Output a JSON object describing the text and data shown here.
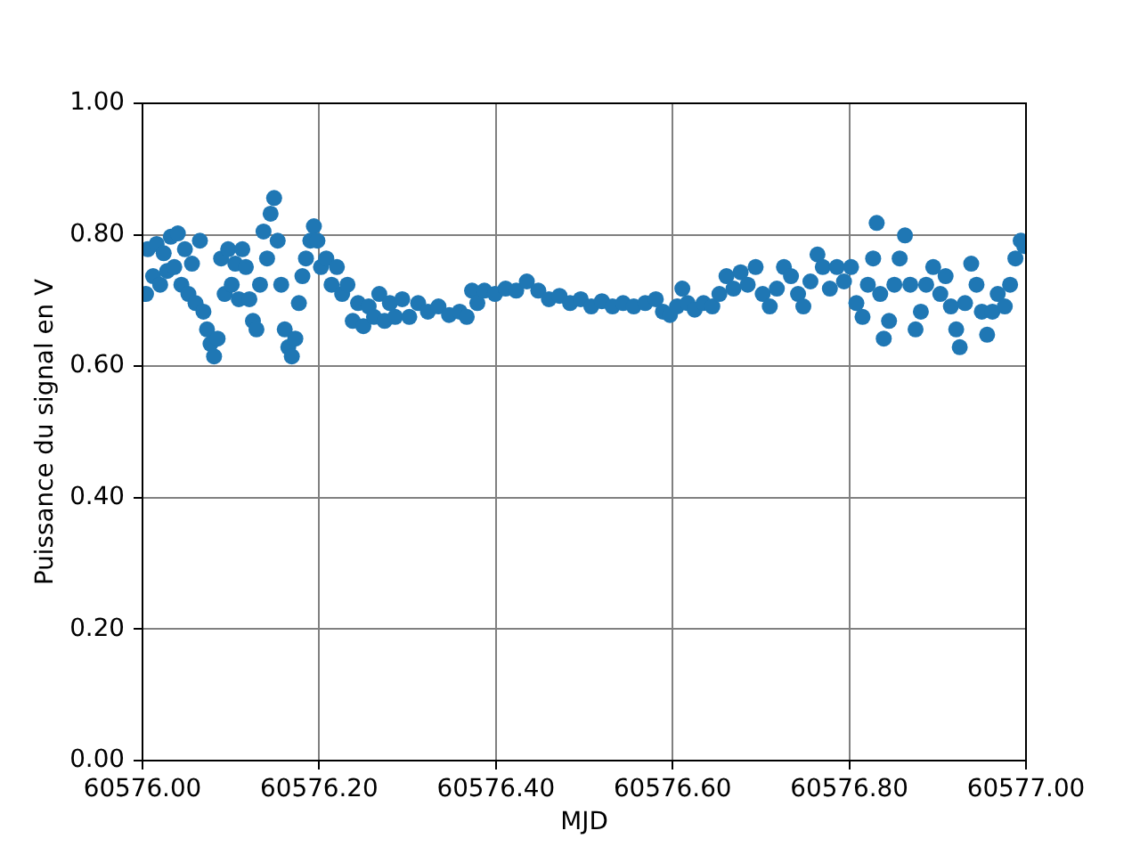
{
  "chart_data": {
    "type": "scatter",
    "xlabel": "MJD",
    "ylabel": "Puissance du signal en V",
    "color": "#1f77b4",
    "marker": "circle",
    "grid": true,
    "xlim": [
      60576,
      60577
    ],
    "ylim": [
      0,
      1
    ],
    "xticks": [
      {
        "value": 60576,
        "label": "60576.00"
      },
      {
        "value": 60576.2,
        "label": "60576.20"
      },
      {
        "value": 60576.4,
        "label": "60576.40"
      },
      {
        "value": 60576.6,
        "label": "60576.60"
      },
      {
        "value": 60576.8,
        "label": "60576.80"
      },
      {
        "value": 60577,
        "label": "60577.00"
      }
    ],
    "yticks": [
      {
        "value": 0,
        "label": "0.00"
      },
      {
        "value": 0.2,
        "label": "0.20"
      },
      {
        "value": 0.4,
        "label": "0.40"
      },
      {
        "value": 0.6,
        "label": "0.60"
      },
      {
        "value": 0.8,
        "label": "0.80"
      },
      {
        "value": 1,
        "label": "1.00"
      }
    ],
    "x": [
      60576.004,
      60576.006,
      60576.012,
      60576.016,
      60576.02,
      60576.024,
      60576.028,
      60576.032,
      60576.036,
      60576.04,
      60576.044,
      60576.048,
      60576.052,
      60576.056,
      60576.06,
      60576.065,
      60576.069,
      60576.073,
      60576.077,
      60576.081,
      60576.085,
      60576.089,
      60576.093,
      60576.097,
      60576.101,
      60576.105,
      60576.109,
      60576.113,
      60576.117,
      60576.121,
      60576.125,
      60576.129,
      60576.133,
      60576.137,
      60576.141,
      60576.145,
      60576.149,
      60576.153,
      60576.157,
      60576.161,
      60576.165,
      60576.169,
      60576.173,
      60576.177,
      60576.181,
      60576.185,
      60576.19,
      60576.194,
      60576.198,
      60576.202,
      60576.208,
      60576.214,
      60576.22,
      60576.226,
      60576.232,
      60576.238,
      60576.244,
      60576.25,
      60576.256,
      60576.262,
      60576.268,
      60576.274,
      60576.28,
      60576.286,
      60576.294,
      60576.302,
      60576.312,
      60576.323,
      60576.335,
      60576.347,
      60576.359,
      60576.367,
      60576.373,
      60576.379,
      60576.387,
      60576.399,
      60576.411,
      60576.423,
      60576.435,
      60576.448,
      60576.46,
      60576.472,
      60576.484,
      60576.496,
      60576.508,
      60576.52,
      60576.532,
      60576.544,
      60576.556,
      60576.569,
      60576.581,
      60576.589,
      60576.597,
      60576.605,
      60576.611,
      60576.617,
      60576.625,
      60576.635,
      60576.645,
      60576.653,
      60576.661,
      60576.669,
      60576.677,
      60576.685,
      60576.694,
      60576.702,
      60576.71,
      60576.718,
      60576.726,
      60576.734,
      60576.742,
      60576.748,
      60576.756,
      60576.764,
      60576.77,
      60576.778,
      60576.786,
      60576.794,
      60576.802,
      60576.808,
      60576.815,
      60576.821,
      60576.827,
      60576.831,
      60576.835,
      60576.839,
      60576.845,
      60576.851,
      60576.857,
      60576.863,
      60576.869,
      60576.875,
      60576.881,
      60576.887,
      60576.895,
      60576.903,
      60576.909,
      60576.915,
      60576.921,
      60576.925,
      60576.931,
      60576.938,
      60576.944,
      60576.95,
      60576.956,
      60576.962,
      60576.968,
      60576.976,
      60576.982,
      60576.988,
      60576.994,
      60576.998
    ],
    "values": [
      0.71,
      0.778,
      0.737,
      0.786,
      0.724,
      0.772,
      0.745,
      0.797,
      0.751,
      0.802,
      0.724,
      0.778,
      0.71,
      0.756,
      0.696,
      0.791,
      0.683,
      0.656,
      0.634,
      0.615,
      0.642,
      0.764,
      0.71,
      0.778,
      0.724,
      0.756,
      0.702,
      0.778,
      0.751,
      0.702,
      0.669,
      0.656,
      0.724,
      0.805,
      0.764,
      0.832,
      0.856,
      0.791,
      0.724,
      0.656,
      0.629,
      0.615,
      0.642,
      0.696,
      0.737,
      0.764,
      0.791,
      0.813,
      0.791,
      0.751,
      0.764,
      0.724,
      0.751,
      0.71,
      0.724,
      0.669,
      0.696,
      0.661,
      0.691,
      0.675,
      0.71,
      0.669,
      0.696,
      0.675,
      0.702,
      0.675,
      0.696,
      0.683,
      0.691,
      0.678,
      0.683,
      0.675,
      0.715,
      0.696,
      0.715,
      0.71,
      0.718,
      0.715,
      0.729,
      0.715,
      0.702,
      0.707,
      0.696,
      0.702,
      0.691,
      0.699,
      0.691,
      0.696,
      0.691,
      0.696,
      0.702,
      0.683,
      0.678,
      0.691,
      0.718,
      0.696,
      0.686,
      0.696,
      0.691,
      0.71,
      0.737,
      0.718,
      0.743,
      0.724,
      0.751,
      0.71,
      0.691,
      0.718,
      0.751,
      0.737,
      0.71,
      0.691,
      0.729,
      0.77,
      0.751,
      0.718,
      0.751,
      0.729,
      0.751,
      0.696,
      0.675,
      0.724,
      0.764,
      0.818,
      0.71,
      0.642,
      0.669,
      0.724,
      0.764,
      0.799,
      0.724,
      0.656,
      0.683,
      0.724,
      0.751,
      0.71,
      0.737,
      0.691,
      0.656,
      0.629,
      0.696,
      0.756,
      0.724,
      0.683,
      0.648,
      0.683,
      0.71,
      0.691,
      0.724,
      0.764,
      0.791,
      0.783
    ]
  }
}
